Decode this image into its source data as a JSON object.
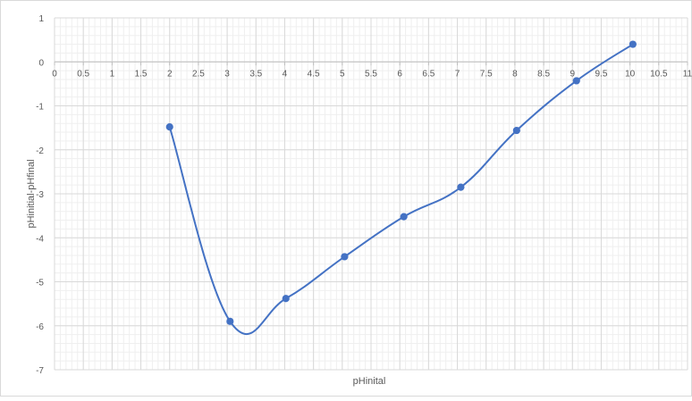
{
  "chart_data": {
    "type": "line",
    "title": "",
    "xlabel": "pHinital",
    "ylabel": "pHinitial-pHfinal",
    "xlim": [
      0,
      11
    ],
    "ylim": [
      -7,
      1
    ],
    "x_ticks": [
      "0",
      "0.5",
      "1",
      "1.5",
      "2",
      "2.5",
      "3",
      "3.5",
      "4",
      "4.5",
      "5",
      "5.5",
      "6",
      "6.5",
      "7",
      "7.5",
      "8",
      "8.5",
      "9",
      "9.5",
      "10",
      "10.5",
      "11"
    ],
    "y_ticks": [
      "1",
      "0",
      "-1",
      "-2",
      "-3",
      "-4",
      "-5",
      "-6",
      "-7"
    ],
    "grid": true,
    "minor_grid": true,
    "legend": "none",
    "smooth": true,
    "series": [
      {
        "color": "#4472c4",
        "x": [
          2.0,
          3.05,
          4.02,
          5.04,
          6.07,
          7.06,
          8.03,
          9.07,
          10.05
        ],
        "y": [
          -1.48,
          -5.9,
          -5.38,
          -4.43,
          -3.52,
          -2.85,
          -1.56,
          -0.43,
          0.4
        ]
      }
    ]
  }
}
